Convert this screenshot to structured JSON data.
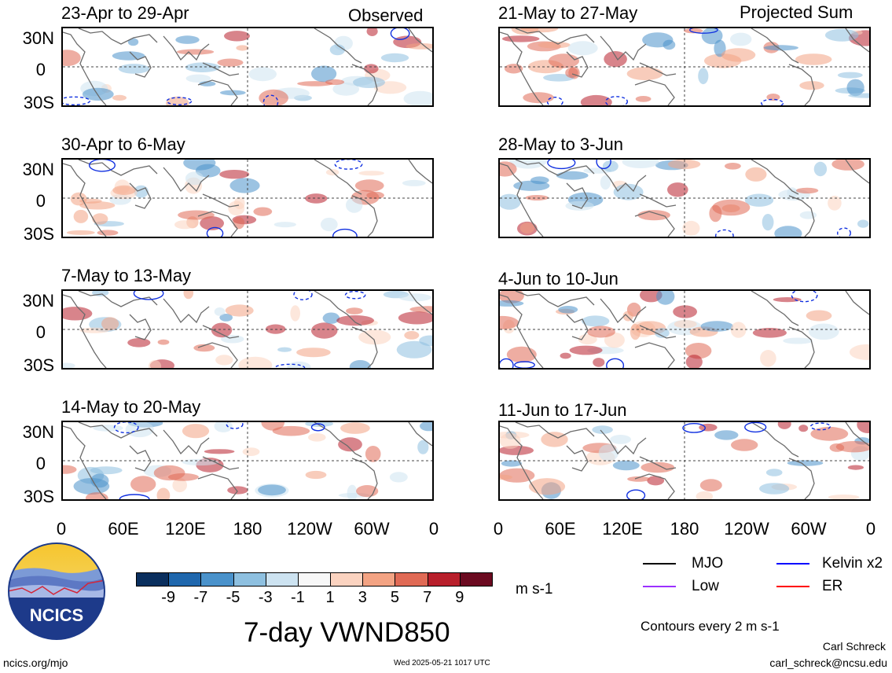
{
  "columns": {
    "left_label": "Observed",
    "right_label": "Projected Sum"
  },
  "panels": {
    "left": [
      {
        "title": "23-Apr to 29-Apr"
      },
      {
        "title": "30-Apr to 6-May"
      },
      {
        "title": "7-May to 13-May"
      },
      {
        "title": "14-May to 20-May"
      }
    ],
    "right": [
      {
        "title": "21-May to 27-May"
      },
      {
        "title": "28-May to 3-Jun"
      },
      {
        "title": "4-Jun to 10-Jun"
      },
      {
        "title": "11-Jun to 17-Jun"
      }
    ]
  },
  "lat_labels": [
    "30N",
    "0",
    "30S"
  ],
  "lon_labels": [
    "0",
    "60E",
    "120E",
    "180",
    "120W",
    "60W",
    "0"
  ],
  "colorbar": {
    "colors": [
      "#0a2f5e",
      "#1f67ad",
      "#4a92cb",
      "#8ec0e0",
      "#cde3f1",
      "#f7f7f7",
      "#fbd3c0",
      "#f3a383",
      "#e06a55",
      "#b81f2b",
      "#6b0a20"
    ],
    "ticks": [
      "-9",
      "-7",
      "-5",
      "-3",
      "-1",
      "1",
      "3",
      "5",
      "7",
      "9"
    ],
    "units": "m s-1"
  },
  "legend": {
    "mjo": "MJO",
    "kelvin": "Kelvin x2",
    "low": "Low",
    "er": "ER",
    "contours": "Contours every 2 m s-1",
    "colors": {
      "mjo": "#000000",
      "kelvin": "#0000ff",
      "low": "#9b30ff",
      "er": "#ff0000"
    }
  },
  "title": "7-day VWND850",
  "logo_text": "NCICS",
  "footer": {
    "url": "ncics.org/mjo",
    "timestamp": "Wed 2025-05-21 1017 UTC",
    "author": "Carl Schreck",
    "email": "carl_schreck@ncsu.edu"
  }
}
